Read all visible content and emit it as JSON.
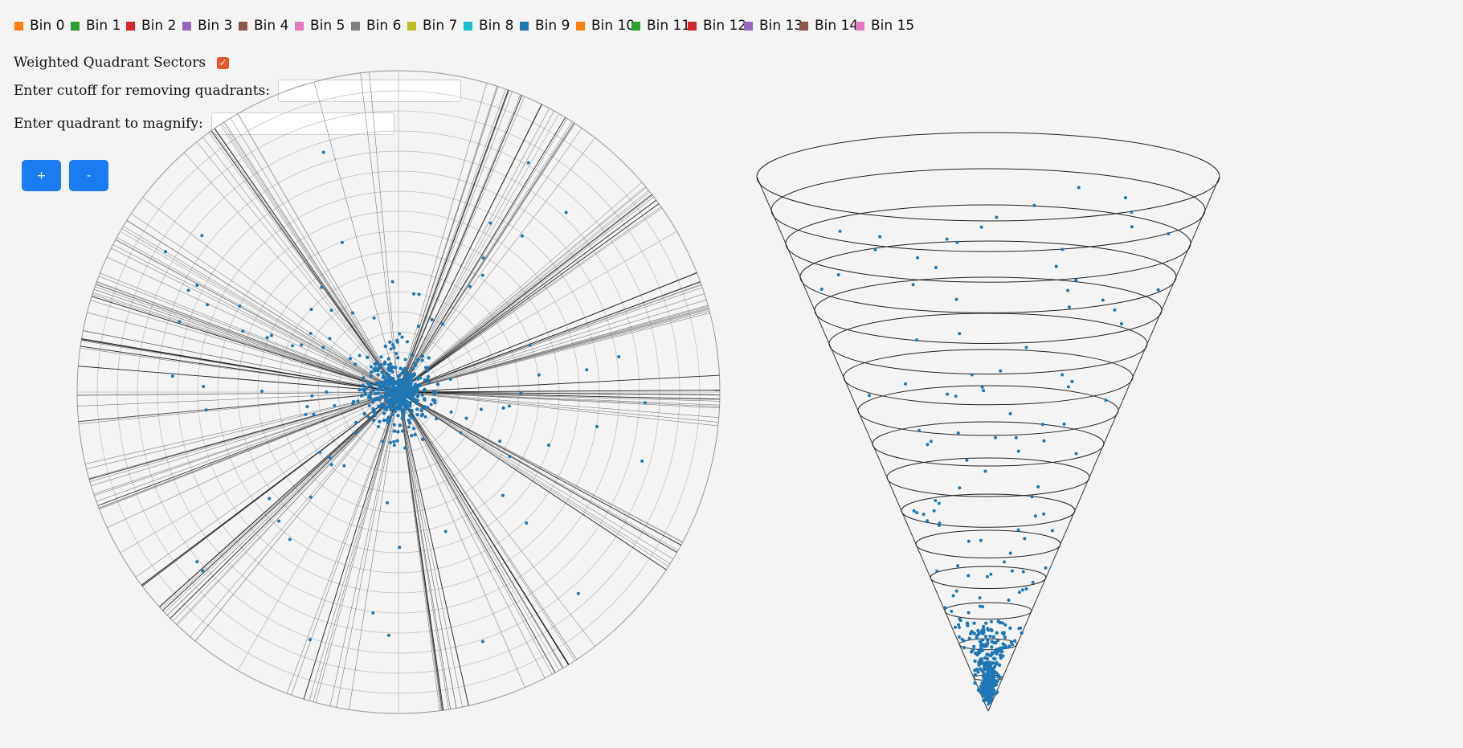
{
  "legend": {
    "items": [
      {
        "label": "Bin 0",
        "color": "#ff7f0e"
      },
      {
        "label": "Bin 1",
        "color": "#2ca02c"
      },
      {
        "label": "Bin 2",
        "color": "#d62728"
      },
      {
        "label": "Bin 3",
        "color": "#9467bd"
      },
      {
        "label": "Bin 4",
        "color": "#8c564b"
      },
      {
        "label": "Bin 5",
        "color": "#e377c2"
      },
      {
        "label": "Bin 6",
        "color": "#7f7f7f"
      },
      {
        "label": "Bin 7",
        "color": "#bcbd22"
      },
      {
        "label": "Bin 8",
        "color": "#17becf"
      },
      {
        "label": "Bin 9",
        "color": "#1f77b4"
      },
      {
        "label": "Bin 10",
        "color": "#ff7f0e"
      },
      {
        "label": "Bin 11",
        "color": "#2ca02c"
      },
      {
        "label": "Bin 12",
        "color": "#d62728"
      },
      {
        "label": "Bin 13",
        "color": "#9467bd"
      },
      {
        "label": "Bin 14",
        "color": "#8c564b"
      },
      {
        "label": "Bin 15",
        "color": "#e377c2"
      }
    ]
  },
  "controls": {
    "weighted_label": "Weighted Quadrant Sectors",
    "weighted_checked": true,
    "cutoff_label": "Enter cutoff for removing quadrants:",
    "cutoff_value": "",
    "magnify_label": "Enter quadrant to magnify:",
    "magnify_value": "",
    "zoom_in_label": "+",
    "zoom_out_label": "-"
  },
  "colors": {
    "point": "#1f77b4",
    "accent": "#1a7cf0",
    "checkbox": "#e8552a"
  },
  "polar_plot": {
    "rings": 16,
    "sector_lines": 200
  },
  "cone_plot": {
    "levels": 16
  }
}
